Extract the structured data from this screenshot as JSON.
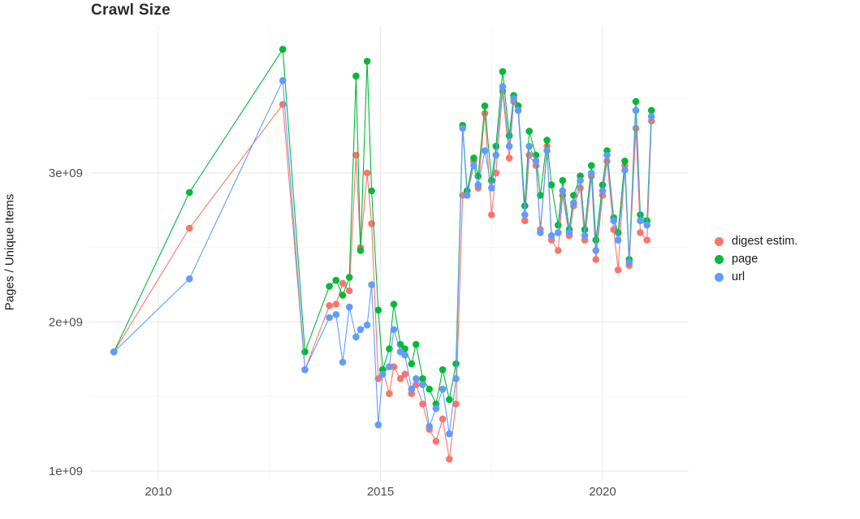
{
  "title": "Crawl Size",
  "chart_data": {
    "type": "line",
    "title": "Crawl Size",
    "xlabel": "",
    "ylabel": "Pages / Unique Items",
    "x_unit": "year (decimal)",
    "y_unit": "count (multiply by 1e9)",
    "xlim": [
      2008.4,
      2021.9
    ],
    "ylim": [
      0.95,
      3.95
    ],
    "grid": true,
    "legend_position": "right",
    "xticks": [
      {
        "value": 2010,
        "label": "2010"
      },
      {
        "value": 2015,
        "label": "2015"
      },
      {
        "value": 2020,
        "label": "2020"
      }
    ],
    "yticks": [
      {
        "value": 1,
        "label": "1e+09"
      },
      {
        "value": 2,
        "label": "2e+09"
      },
      {
        "value": 3,
        "label": "3e+09"
      }
    ],
    "x": [
      2009.0,
      2010.7,
      2012.8,
      2013.3,
      2013.85,
      2014.0,
      2014.15,
      2014.3,
      2014.45,
      2014.55,
      2014.7,
      2014.8,
      2014.95,
      2015.05,
      2015.2,
      2015.3,
      2015.45,
      2015.55,
      2015.7,
      2015.8,
      2015.95,
      2016.1,
      2016.25,
      2016.4,
      2016.55,
      2016.7,
      2016.85,
      2016.95,
      2017.1,
      2017.2,
      2017.35,
      2017.5,
      2017.6,
      2017.75,
      2017.9,
      2018.0,
      2018.1,
      2018.25,
      2018.35,
      2018.5,
      2018.6,
      2018.75,
      2018.85,
      2019.0,
      2019.1,
      2019.25,
      2019.35,
      2019.5,
      2019.6,
      2019.75,
      2019.85,
      2020.0,
      2020.1,
      2020.25,
      2020.35,
      2020.5,
      2020.6,
      2020.75,
      2020.85,
      2021.0,
      2021.1
    ],
    "series": [
      {
        "name": "digest estim.",
        "color": "#F8766D",
        "values": [
          1.8,
          2.63,
          3.46,
          1.68,
          2.11,
          2.12,
          2.26,
          2.21,
          3.12,
          2.5,
          3.0,
          2.66,
          1.62,
          1.68,
          1.52,
          1.7,
          1.62,
          1.65,
          1.52,
          1.58,
          1.45,
          1.28,
          1.2,
          1.35,
          1.08,
          1.45,
          2.85,
          2.88,
          3.08,
          2.9,
          3.4,
          2.72,
          3.0,
          3.55,
          3.1,
          3.48,
          3.45,
          2.68,
          3.12,
          3.05,
          2.62,
          3.18,
          2.55,
          2.48,
          2.85,
          2.58,
          2.78,
          2.9,
          2.55,
          2.98,
          2.42,
          2.85,
          3.08,
          2.62,
          2.35,
          3.05,
          2.38,
          3.3,
          2.6,
          2.55,
          3.35
        ]
      },
      {
        "name": "page",
        "color": "#00BA38",
        "values": [
          1.8,
          2.87,
          3.83,
          1.8,
          2.24,
          2.28,
          2.18,
          2.3,
          3.65,
          2.48,
          3.75,
          2.88,
          2.08,
          1.68,
          1.82,
          2.12,
          1.85,
          1.82,
          1.72,
          1.85,
          1.62,
          1.55,
          1.45,
          1.68,
          1.48,
          1.72,
          3.32,
          2.88,
          3.1,
          2.98,
          3.45,
          2.95,
          3.18,
          3.68,
          3.25,
          3.52,
          3.45,
          2.78,
          3.28,
          3.12,
          2.85,
          3.22,
          2.92,
          2.65,
          2.95,
          2.62,
          2.85,
          2.98,
          2.62,
          3.05,
          2.55,
          2.92,
          3.15,
          2.7,
          2.6,
          3.08,
          2.42,
          3.48,
          2.72,
          2.68,
          3.42
        ]
      },
      {
        "name": "url",
        "color": "#619CFF",
        "values": [
          1.8,
          2.29,
          3.62,
          1.68,
          2.03,
          2.05,
          1.73,
          2.1,
          1.9,
          1.95,
          1.98,
          2.25,
          1.31,
          1.65,
          1.7,
          1.95,
          1.8,
          1.78,
          1.55,
          1.62,
          1.58,
          1.3,
          1.42,
          1.55,
          1.25,
          1.62,
          3.3,
          2.85,
          3.05,
          2.92,
          3.15,
          2.9,
          3.12,
          3.58,
          3.18,
          3.5,
          3.42,
          2.72,
          3.18,
          3.08,
          2.6,
          3.15,
          2.58,
          2.6,
          2.88,
          2.6,
          2.8,
          2.95,
          2.58,
          3.0,
          2.48,
          2.88,
          3.12,
          2.68,
          2.55,
          3.02,
          2.4,
          3.42,
          2.68,
          2.65,
          3.38
        ]
      }
    ]
  },
  "colors": {
    "grid_major": "#ebebeb",
    "grid_minor": "#f5f5f5",
    "tick_label": "#4d4d4d"
  }
}
